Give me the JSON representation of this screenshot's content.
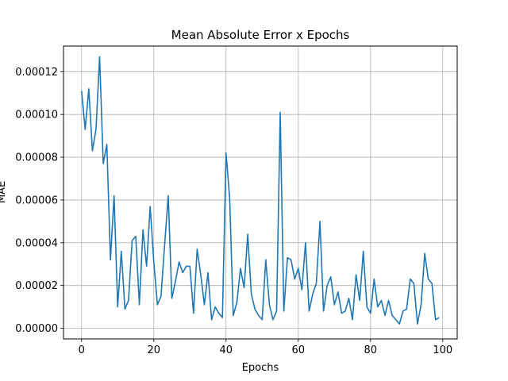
{
  "chart_data": {
    "type": "line",
    "title": "Mean Absolute Error x Epochs",
    "xlabel": "Epochs",
    "ylabel": "MAE",
    "xlim": [
      -5,
      104
    ],
    "ylim": [
      -5e-06,
      0.000132
    ],
    "xticks": [
      0,
      20,
      40,
      60,
      80,
      100
    ],
    "xtick_labels": [
      "0",
      "20",
      "40",
      "60",
      "80",
      "100"
    ],
    "yticks": [
      0,
      2e-05,
      4e-05,
      6e-05,
      8e-05,
      0.0001,
      0.00012
    ],
    "ytick_labels": [
      "0.00000",
      "0.00002",
      "0.00004",
      "0.00006",
      "0.00008",
      "0.00010",
      "0.00012"
    ],
    "grid": true,
    "line_color": "#1f77b4",
    "series": [
      {
        "x": [
          0,
          1,
          2,
          3,
          4,
          5,
          6,
          7,
          8,
          9,
          10,
          11,
          12,
          13,
          14,
          15,
          16,
          17,
          18,
          19,
          20,
          21,
          22,
          23,
          24,
          25,
          26,
          27,
          28,
          29,
          30,
          31,
          32,
          33,
          34,
          35,
          36,
          37,
          38,
          39,
          40,
          41,
          42,
          43,
          44,
          45,
          46,
          47,
          48,
          49,
          50,
          51,
          52,
          53,
          54,
          55,
          56,
          57,
          58,
          59,
          60,
          61,
          62,
          63,
          64,
          65,
          66,
          67,
          68,
          69,
          70,
          71,
          72,
          73,
          74,
          75,
          76,
          77,
          78,
          79,
          80,
          81,
          82,
          83,
          84,
          85,
          86,
          87,
          88,
          89,
          90,
          91,
          92,
          93,
          94,
          95,
          96,
          97,
          98,
          99
        ],
        "values": [
          0.000111,
          9.3e-05,
          0.000112,
          8.3e-05,
          9.3e-05,
          0.000127,
          7.7e-05,
          8.6e-05,
          3.2e-05,
          6.2e-05,
          1e-05,
          3.6e-05,
          9e-06,
          1.3e-05,
          4.1e-05,
          4.3e-05,
          1.1e-05,
          4.6e-05,
          2.9e-05,
          5.7e-05,
          3.1e-05,
          1.1e-05,
          1.5e-05,
          3.9e-05,
          6.2e-05,
          1.4e-05,
          2.2e-05,
          3.1e-05,
          2.6e-05,
          2.9e-05,
          2.9e-05,
          7e-06,
          3.7e-05,
          2.5e-05,
          1.1e-05,
          2.6e-05,
          4e-06,
          1e-05,
          7e-06,
          5e-06,
          8.2e-05,
          6.1e-05,
          6e-06,
          1.2e-05,
          2.8e-05,
          1.9e-05,
          4.4e-05,
          1.6e-05,
          9e-06,
          6e-06,
          4e-06,
          3.2e-05,
          1.1e-05,
          4e-06,
          8e-06,
          0.000101,
          8e-06,
          3.3e-05,
          3.2e-05,
          2.3e-05,
          2.8e-05,
          1.8e-05,
          4e-05,
          8e-06,
          1.6e-05,
          2.1e-05,
          5e-05,
          8e-06,
          2e-05,
          2.4e-05,
          1.1e-05,
          1.7e-05,
          7e-06,
          8e-06,
          1.4e-05,
          4e-06,
          2.5e-05,
          1.3e-05,
          3.6e-05,
          1e-05,
          7e-06,
          2.3e-05,
          1e-05,
          1.3e-05,
          6e-06,
          1.3e-05,
          6e-06,
          4e-06,
          2e-06,
          8e-06,
          9e-06,
          2.3e-05,
          2.1e-05,
          2e-06,
          1.1e-05,
          3.5e-05,
          2.3e-05,
          2.1e-05,
          4e-06,
          5e-06
        ]
      }
    ]
  }
}
